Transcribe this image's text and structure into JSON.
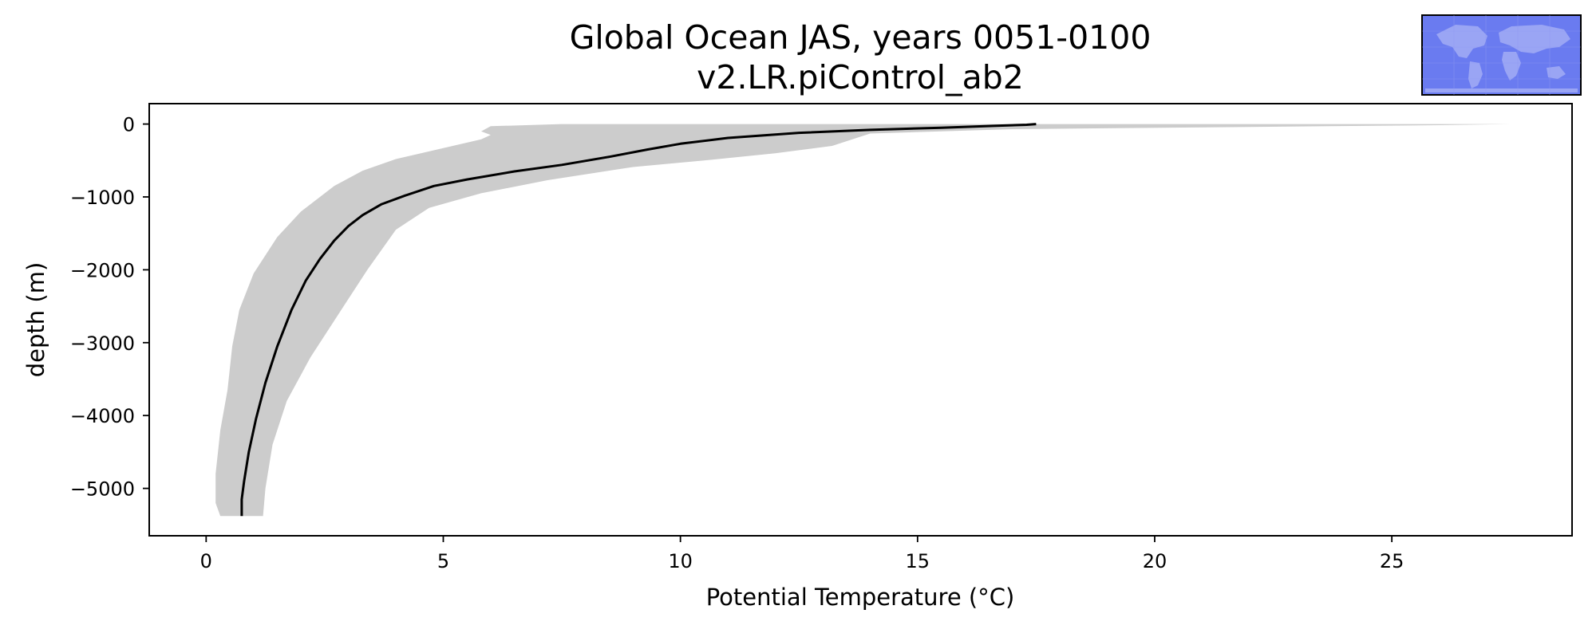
{
  "chart_data": {
    "type": "line",
    "title": "Global Ocean JAS, years 0051-0100",
    "subtitle": "v2.LR.piControl_ab2",
    "xlabel": "Potential Temperature (°C)",
    "ylabel": "depth (m)",
    "xlim": [
      -1.2,
      28.8
    ],
    "ylim": [
      -5650,
      280
    ],
    "xticks": [
      0,
      5,
      10,
      15,
      20,
      25
    ],
    "yticks": [
      0,
      -1000,
      -2000,
      -3000,
      -4000,
      -5000
    ],
    "xtick_labels": [
      "0",
      "5",
      "10",
      "15",
      "20",
      "25"
    ],
    "ytick_labels": [
      "0",
      "−1000",
      "−2000",
      "−3000",
      "−4000",
      "−5000"
    ],
    "grid": false,
    "legend": "none",
    "inset": "world-map-region-icon",
    "series": [
      {
        "kind": "mean-line",
        "color": "#000000",
        "points": [
          [
            17.5,
            0
          ],
          [
            17.3,
            -10
          ],
          [
            16.6,
            -25
          ],
          [
            15.5,
            -50
          ],
          [
            14.0,
            -80
          ],
          [
            12.5,
            -120
          ],
          [
            11.0,
            -190
          ],
          [
            10.0,
            -270
          ],
          [
            9.3,
            -350
          ],
          [
            8.5,
            -450
          ],
          [
            7.5,
            -560
          ],
          [
            6.5,
            -650
          ],
          [
            5.5,
            -760
          ],
          [
            4.8,
            -850
          ],
          [
            4.2,
            -980
          ],
          [
            3.7,
            -1100
          ],
          [
            3.3,
            -1250
          ],
          [
            3.0,
            -1400
          ],
          [
            2.7,
            -1600
          ],
          [
            2.4,
            -1850
          ],
          [
            2.1,
            -2150
          ],
          [
            1.8,
            -2550
          ],
          [
            1.5,
            -3050
          ],
          [
            1.25,
            -3550
          ],
          [
            1.05,
            -4050
          ],
          [
            0.9,
            -4500
          ],
          [
            0.8,
            -4900
          ],
          [
            0.75,
            -5150
          ],
          [
            0.75,
            -5380
          ]
        ]
      },
      {
        "kind": "range-band",
        "color": "#cccccc",
        "upper": [
          [
            27.5,
            0
          ],
          [
            26.0,
            -15
          ],
          [
            22.0,
            -40
          ],
          [
            17.0,
            -70
          ],
          [
            14.0,
            -130
          ],
          [
            13.2,
            -300
          ],
          [
            12.0,
            -400
          ],
          [
            10.5,
            -500
          ],
          [
            9.0,
            -590
          ],
          [
            7.2,
            -770
          ],
          [
            5.8,
            -950
          ],
          [
            4.7,
            -1150
          ],
          [
            4.0,
            -1450
          ],
          [
            3.4,
            -2000
          ],
          [
            2.8,
            -2600
          ],
          [
            2.2,
            -3200
          ],
          [
            1.7,
            -3800
          ],
          [
            1.4,
            -4400
          ],
          [
            1.25,
            -5000
          ],
          [
            1.2,
            -5380
          ]
        ],
        "lower": [
          [
            7.5,
            0
          ],
          [
            6.0,
            -30
          ],
          [
            5.8,
            -100
          ],
          [
            6.0,
            -150
          ],
          [
            5.8,
            -210
          ],
          [
            5.0,
            -330
          ],
          [
            4.0,
            -480
          ],
          [
            3.3,
            -640
          ],
          [
            2.7,
            -850
          ],
          [
            2.0,
            -1200
          ],
          [
            1.5,
            -1550
          ],
          [
            1.0,
            -2050
          ],
          [
            0.7,
            -2550
          ],
          [
            0.55,
            -3050
          ],
          [
            0.45,
            -3650
          ],
          [
            0.3,
            -4200
          ],
          [
            0.2,
            -4800
          ],
          [
            0.2,
            -5200
          ],
          [
            0.3,
            -5380
          ]
        ]
      }
    ]
  }
}
